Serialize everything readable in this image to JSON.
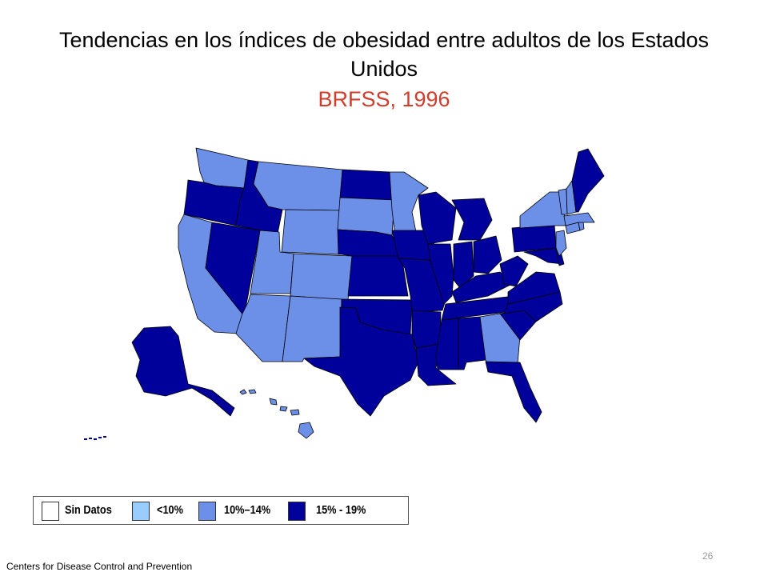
{
  "title": "Tendencias en los índices de obesidad entre adultos de los Estados Unidos",
  "subtitle": "BRFSS, 1996",
  "colors": {
    "subtitle": "#d13c2b",
    "no_data": "#ffffff",
    "lt10": "#99ccff",
    "p10_14": "#6c8fe8",
    "p15_19": "#00009a",
    "border": "#000000"
  },
  "legend": {
    "items": [
      {
        "label": "Sin Datos",
        "key": "no_data"
      },
      {
        "label": "<10%",
        "key": "lt10"
      },
      {
        "label": "10%–14%",
        "key": "p10_14"
      },
      {
        "label": "15% - 19%",
        "key": "p15_19"
      }
    ]
  },
  "categories": {
    "15% - 19%": [
      "OR",
      "ID",
      "NV",
      "ND",
      "NE",
      "KS",
      "OK",
      "TX",
      "IA",
      "MO",
      "AR",
      "LA",
      "WI",
      "IL",
      "MS",
      "AL",
      "MI",
      "IN",
      "KY",
      "TN",
      "OH",
      "WV",
      "VA",
      "NC",
      "SC",
      "FL",
      "PA",
      "MD",
      "DE",
      "ME",
      "AK"
    ],
    "10%–14%": [
      "WA",
      "MT",
      "WY",
      "CO",
      "UT",
      "AZ",
      "NM",
      "CA",
      "SD",
      "MN",
      "NY",
      "VT",
      "NH",
      "MA",
      "CT",
      "RI",
      "NJ",
      "GA",
      "HI"
    ]
  },
  "footer": "Centers  for Disease Control and Prevention",
  "page_number": "26"
}
